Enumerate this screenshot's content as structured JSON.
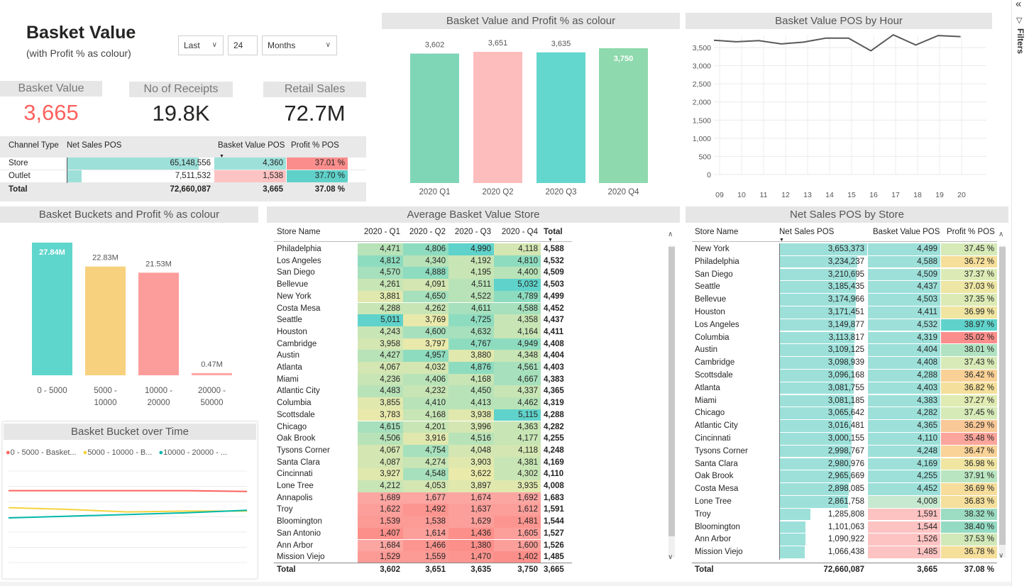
{
  "header": {
    "title": "Basket Value",
    "subtitle": "(with Profit % as colour)"
  },
  "filters": {
    "period": "Last",
    "count": "24",
    "unit": "Months"
  },
  "kpis": [
    {
      "label": "Basket Value",
      "value": "3,665",
      "color": "#fd625e"
    },
    {
      "label": "No of Receipts",
      "value": "19.8K",
      "color": "#252423"
    },
    {
      "label": "Retail Sales",
      "value": "72.7M",
      "color": "#252423"
    }
  ],
  "channel_table": {
    "columns": [
      "Channel Type",
      "Net Sales POS",
      "Basket Value POS",
      "Profit % POS"
    ],
    "rows": [
      {
        "name": "Store",
        "net": "65,148,556",
        "net_frac": 0.897,
        "basket": "4,360",
        "profit": "37.01 %",
        "profit_color": "#fb8e8c",
        "basket_color": "#9de0da"
      },
      {
        "name": "Outlet",
        "net": "7,511,532",
        "net_frac": 0.103,
        "basket": "1,538",
        "profit": "37.70 %",
        "profit_color": "#5fd1c9",
        "basket_color": "#fcc3c2"
      }
    ],
    "total": {
      "name": "Total",
      "net": "72,660,087",
      "basket": "3,665",
      "profit": "37.08 %"
    }
  },
  "quarter_chart": {
    "title": "Basket Value and Profit % as colour",
    "chart_data": {
      "type": "bar",
      "categories": [
        "2020 Q1",
        "2020 Q2",
        "2020 Q3",
        "2020 Q4"
      ],
      "values": [
        3602,
        3651,
        3635,
        3750
      ],
      "labels": [
        "3,602",
        "3,651",
        "3,635",
        "3,750"
      ],
      "colors": [
        "#7fd6b6",
        "#fdbdbd",
        "#63d6cd",
        "#8ed9ad"
      ],
      "ylim": [
        0,
        3750
      ]
    }
  },
  "hour_chart": {
    "title": "Basket Value POS by Hour",
    "chart_data": {
      "type": "line",
      "x": [
        "09",
        "10",
        "11",
        "12",
        "13",
        "14",
        "15",
        "16",
        "17",
        "18",
        "19",
        "20"
      ],
      "values": [
        3700,
        3660,
        3690,
        3600,
        3650,
        3760,
        3760,
        3410,
        3850,
        3570,
        3830,
        3800
      ],
      "yticks": [
        0,
        500,
        1000,
        1500,
        2000,
        2500,
        3000,
        3500
      ],
      "ytick_labels": [
        "0",
        "500",
        "1,000",
        "1,500",
        "2,000",
        "2,500",
        "3,000",
        "3,500"
      ],
      "ylim": [
        0,
        3900
      ],
      "color": "#595959"
    }
  },
  "bucket_chart": {
    "title": "Basket Buckets and Profit % as colour",
    "chart_data": {
      "type": "bar",
      "categories": [
        [
          "0 - 5000",
          ""
        ],
        [
          "5000 -",
          "10000"
        ],
        [
          "10000 -",
          "20000"
        ],
        [
          "20000 -",
          "50000"
        ]
      ],
      "values": [
        27.84,
        22.83,
        21.53,
        0.47
      ],
      "labels": [
        "27.84M",
        "22.83M",
        "21.53M",
        "0.47M"
      ],
      "colors": [
        "#5fd6cc",
        "#f8d17f",
        "#fd9d9b",
        "#fca8a6"
      ],
      "ylim": [
        0,
        27.84
      ]
    }
  },
  "bucket_time": {
    "title": "Basket Bucket over Time",
    "chart_data": {
      "type": "line",
      "legend": [
        {
          "name": "0 - 5000 - Basket...",
          "color": "#fd625e"
        },
        {
          "name": "5000 - 10000 - B...",
          "color": "#f5d33f"
        },
        {
          "name": "10000 - 20000 - ...",
          "color": "#01b8aa"
        }
      ],
      "series": [
        {
          "name": "0 - 5000",
          "values": [
            0.82,
            0.82,
            0.82,
            0.82,
            0.81
          ],
          "color": "#fd625e"
        },
        {
          "name": "5000 - 10000",
          "values": [
            0.62,
            0.6,
            0.57,
            0.58,
            0.58
          ],
          "color": "#f5d33f"
        },
        {
          "name": "10000 - 20000",
          "values": [
            0.5,
            0.52,
            0.54,
            0.56,
            0.59
          ],
          "color": "#01b8aa"
        }
      ],
      "ylim": [
        0,
        1
      ]
    }
  },
  "store_matrix": {
    "title": "Average Basket Value Store",
    "columns": [
      "Store Name",
      "2020 - Q1",
      "2020 - Q2",
      "2020 - Q3",
      "2020 - Q4",
      "Total"
    ],
    "rows": [
      [
        "Philadelphia",
        "4,471",
        "4,806",
        "4,990",
        "4,118",
        "4,588"
      ],
      [
        "Los Angeles",
        "4,812",
        "4,340",
        "4,192",
        "4,810",
        "4,532"
      ],
      [
        "San Diego",
        "4,570",
        "4,888",
        "4,195",
        "4,400",
        "4,509"
      ],
      [
        "Bellevue",
        "4,261",
        "4,091",
        "4,511",
        "5,032",
        "4,503"
      ],
      [
        "New York",
        "3,881",
        "4,650",
        "4,522",
        "4,789",
        "4,499"
      ],
      [
        "Costa Mesa",
        "4,288",
        "4,262",
        "4,611",
        "4,588",
        "4,452"
      ],
      [
        "Seattle",
        "5,011",
        "3,769",
        "4,725",
        "4,358",
        "4,437"
      ],
      [
        "Houston",
        "4,243",
        "4,600",
        "4,632",
        "4,164",
        "4,411"
      ],
      [
        "Cambridge",
        "3,958",
        "3,797",
        "4,767",
        "4,949",
        "4,408"
      ],
      [
        "Austin",
        "4,427",
        "4,957",
        "3,880",
        "4,348",
        "4,404"
      ],
      [
        "Atlanta",
        "4,067",
        "4,032",
        "4,876",
        "4,561",
        "4,403"
      ],
      [
        "Miami",
        "4,236",
        "4,406",
        "4,168",
        "4,667",
        "4,383"
      ],
      [
        "Atlantic City",
        "4,483",
        "4,232",
        "4,450",
        "4,337",
        "4,365"
      ],
      [
        "Columbia",
        "3,855",
        "4,410",
        "4,413",
        "4,462",
        "4,319"
      ],
      [
        "Scottsdale",
        "3,783",
        "4,168",
        "3,938",
        "5,115",
        "4,288"
      ],
      [
        "Chicago",
        "4,615",
        "4,201",
        "3,996",
        "4,363",
        "4,282"
      ],
      [
        "Oak Brook",
        "4,506",
        "3,916",
        "4,516",
        "4,177",
        "4,255"
      ],
      [
        "Tysons Corner",
        "4,067",
        "4,754",
        "4,048",
        "4,118",
        "4,248"
      ],
      [
        "Santa Clara",
        "4,087",
        "4,274",
        "3,903",
        "4,381",
        "4,169"
      ],
      [
        "Cincinnati",
        "3,927",
        "4,548",
        "3,622",
        "4,302",
        "4,110"
      ],
      [
        "Lone Tree",
        "4,212",
        "4,053",
        "3,897",
        "3,935",
        "4,008"
      ],
      [
        "Annapolis",
        "1,689",
        "1,677",
        "1,674",
        "1,692",
        "1,683"
      ],
      [
        "Troy",
        "1,622",
        "1,492",
        "1,637",
        "1,612",
        "1,591"
      ],
      [
        "Bloomington",
        "1,539",
        "1,538",
        "1,629",
        "1,481",
        "1,544"
      ],
      [
        "San Antonio",
        "1,407",
        "1,614",
        "1,436",
        "1,605",
        "1,527"
      ],
      [
        "Ann Arbor",
        "1,684",
        "1,466",
        "1,380",
        "1,600",
        "1,526"
      ],
      [
        "Mission Viejo",
        "1,529",
        "1,559",
        "1,470",
        "1,402",
        "1,485"
      ]
    ],
    "total": [
      "Total",
      "3,602",
      "3,651",
      "3,635",
      "3,750",
      "3,665"
    ],
    "cell_colors": [
      [
        "#b8e3b8",
        "#8edcc0",
        "#5fd3cb",
        "#d4e6b2"
      ],
      [
        "#8edcc0",
        "#b8e3b8",
        "#c8e5b5",
        "#8edcc0"
      ],
      [
        "#a6e0bc",
        "#8edcc0",
        "#c8e5b5",
        "#b8e3b8"
      ],
      [
        "#c8e5b5",
        "#d4e6b2",
        "#b8e3b8",
        "#5fd3cb"
      ],
      [
        "#e0e8ae",
        "#a6e0bc",
        "#b8e3b8",
        "#8edcc0"
      ],
      [
        "#c8e5b5",
        "#c8e5b5",
        "#a6e0bc",
        "#a6e0bc"
      ],
      [
        "#5fd3cb",
        "#e8e9ab",
        "#8edcc0",
        "#c8e5b5"
      ],
      [
        "#c8e5b5",
        "#a6e0bc",
        "#a6e0bc",
        "#c8e5b5"
      ],
      [
        "#d4e6b2",
        "#e8e9ab",
        "#8edcc0",
        "#8edcc0"
      ],
      [
        "#b8e3b8",
        "#8edcc0",
        "#e0e8ae",
        "#c8e5b5"
      ],
      [
        "#d4e6b2",
        "#d4e6b2",
        "#8edcc0",
        "#a6e0bc"
      ],
      [
        "#c8e5b5",
        "#b8e3b8",
        "#c8e5b5",
        "#a6e0bc"
      ],
      [
        "#b8e3b8",
        "#c8e5b5",
        "#b8e3b8",
        "#c8e5b5"
      ],
      [
        "#e0e8ae",
        "#b8e3b8",
        "#b8e3b8",
        "#b8e3b8"
      ],
      [
        "#e8e9ab",
        "#c8e5b5",
        "#e0e8ae",
        "#5fd3cb"
      ],
      [
        "#a6e0bc",
        "#c8e5b5",
        "#d4e6b2",
        "#c8e5b5"
      ],
      [
        "#b8e3b8",
        "#e0e8ae",
        "#b8e3b8",
        "#c8e5b5"
      ],
      [
        "#d4e6b2",
        "#a6e0bc",
        "#d4e6b2",
        "#d4e6b2"
      ],
      [
        "#d4e6b2",
        "#c8e5b5",
        "#e0e8ae",
        "#c8e5b5"
      ],
      [
        "#e0e8ae",
        "#a6e0bc",
        "#eaeaaa",
        "#c8e5b5"
      ],
      [
        "#c8e5b5",
        "#d4e6b2",
        "#e0e8ae",
        "#e0e8ae"
      ],
      [
        "#fca6a2",
        "#fca6a2",
        "#fca6a2",
        "#fca6a2"
      ],
      [
        "#fc9f9b",
        "#fc9590",
        "#fc9f9b",
        "#fc9f9b"
      ],
      [
        "#fc9a96",
        "#fc9a96",
        "#fc9f9b",
        "#fc9590"
      ],
      [
        "#fc8f8a",
        "#fc9f9b",
        "#fc8f8a",
        "#fc9f9b"
      ],
      [
        "#fca6a2",
        "#fc9590",
        "#fc8f8a",
        "#fc9f9b"
      ],
      [
        "#fc9a96",
        "#fc9a96",
        "#fc9590",
        "#fc8f8a"
      ]
    ]
  },
  "net_sales_table": {
    "title": "Net Sales POS by Store",
    "columns": [
      "Store Name",
      "Net Sales POS",
      "Basket Value POS",
      "Profit % POS"
    ],
    "rows": [
      {
        "name": "New York",
        "net": "3,653,373",
        "frac": 1.0,
        "basket": "4,499",
        "bcol": "#9de0da",
        "profit": "37.45 %",
        "pcol": "#d6eab8"
      },
      {
        "name": "Philadelphia",
        "net": "3,234,237",
        "frac": 0.885,
        "basket": "4,588",
        "bcol": "#9de0da",
        "profit": "36.72 %",
        "pcol": "#f6df9a"
      },
      {
        "name": "San Diego",
        "net": "3,210,695",
        "frac": 0.879,
        "basket": "4,509",
        "bcol": "#9de0da",
        "profit": "37.37 %",
        "pcol": "#dcebb6"
      },
      {
        "name": "Seattle",
        "net": "3,185,435",
        "frac": 0.872,
        "basket": "4,437",
        "bcol": "#9de0da",
        "profit": "37.03 %",
        "pcol": "#ede6a4"
      },
      {
        "name": "Bellevue",
        "net": "3,174,966",
        "frac": 0.869,
        "basket": "4,503",
        "bcol": "#9de0da",
        "profit": "37.35 %",
        "pcol": "#dcebb6"
      },
      {
        "name": "Houston",
        "net": "3,171,451",
        "frac": 0.868,
        "basket": "4,411",
        "bcol": "#9de0da",
        "profit": "36.99 %",
        "pcol": "#f0e5a1"
      },
      {
        "name": "Los Angeles",
        "net": "3,149,877",
        "frac": 0.862,
        "basket": "4,532",
        "bcol": "#9de0da",
        "profit": "38.97 %",
        "pcol": "#5fd3cb"
      },
      {
        "name": "Columbia",
        "net": "3,113,817",
        "frac": 0.852,
        "basket": "4,319",
        "bcol": "#9de0da",
        "profit": "35.02 %",
        "pcol": "#fb8e8c"
      },
      {
        "name": "Austin",
        "net": "3,109,125",
        "frac": 0.851,
        "basket": "4,404",
        "bcol": "#9de0da",
        "profit": "38.01 %",
        "pcol": "#b1e3c2"
      },
      {
        "name": "Cambridge",
        "net": "3,098,939",
        "frac": 0.848,
        "basket": "4,408",
        "bcol": "#9de0da",
        "profit": "37.43 %",
        "pcol": "#d8eab7"
      },
      {
        "name": "Scottsdale",
        "net": "3,096,168",
        "frac": 0.847,
        "basket": "4,288",
        "bcol": "#9de0da",
        "profit": "36.42 %",
        "pcol": "#f9d196"
      },
      {
        "name": "Atlanta",
        "net": "3,081,755",
        "frac": 0.843,
        "basket": "4,403",
        "bcol": "#9de0da",
        "profit": "36.82 %",
        "pcol": "#f4e09c"
      },
      {
        "name": "Miami",
        "net": "3,081,185",
        "frac": 0.843,
        "basket": "4,383",
        "bcol": "#9de0da",
        "profit": "37.27 %",
        "pcol": "#e0ebb3"
      },
      {
        "name": "Chicago",
        "net": "3,065,642",
        "frac": 0.839,
        "basket": "4,282",
        "bcol": "#9de0da",
        "profit": "37.45 %",
        "pcol": "#d6eab8"
      },
      {
        "name": "Atlantic City",
        "net": "3,016,481",
        "frac": 0.826,
        "basket": "4,365",
        "bcol": "#9de0da",
        "profit": "36.29 %",
        "pcol": "#f9c897"
      },
      {
        "name": "Cincinnati",
        "net": "3,000,155",
        "frac": 0.821,
        "basket": "4,110",
        "bcol": "#9de0da",
        "profit": "35.48 %",
        "pcol": "#fca59c"
      },
      {
        "name": "Tysons Corner",
        "net": "2,998,767",
        "frac": 0.821,
        "basket": "4,248",
        "bcol": "#9de0da",
        "profit": "36.47 %",
        "pcol": "#f9d398"
      },
      {
        "name": "Santa Clara",
        "net": "2,980,976",
        "frac": 0.816,
        "basket": "4,169",
        "bcol": "#9de0da",
        "profit": "36.98 %",
        "pcol": "#f0e5a1"
      },
      {
        "name": "Oak Brook",
        "net": "2,965,669",
        "frac": 0.812,
        "basket": "4,255",
        "bcol": "#9de0da",
        "profit": "37.91 %",
        "pcol": "#b9e5c0"
      },
      {
        "name": "Costa Mesa",
        "net": "2,898,085",
        "frac": 0.793,
        "basket": "4,452",
        "bcol": "#9de0da",
        "profit": "36.69 %",
        "pcol": "#f6dd9b"
      },
      {
        "name": "Lone Tree",
        "net": "2,861,758",
        "frac": 0.783,
        "basket": "4,008",
        "bcol": "#c6e9d0",
        "profit": "36.83 %",
        "pcol": "#f4e09c"
      },
      {
        "name": "Troy",
        "net": "1,285,808",
        "frac": 0.352,
        "basket": "1,591",
        "bcol": "#fcc3c2",
        "profit": "38.32 %",
        "pcol": "#9bdcc2"
      },
      {
        "name": "Bloomington",
        "net": "1,101,063",
        "frac": 0.301,
        "basket": "1,544",
        "bcol": "#fcc3c2",
        "profit": "38.40 %",
        "pcol": "#95dbc3"
      },
      {
        "name": "Ann Arbor",
        "net": "1,090,922",
        "frac": 0.299,
        "basket": "1,526",
        "bcol": "#fcc3c2",
        "profit": "37.53 %",
        "pcol": "#d1e9b9"
      },
      {
        "name": "Mission Viejo",
        "net": "1,066,438",
        "frac": 0.292,
        "basket": "1,485",
        "bcol": "#fcc3c2",
        "profit": "36.78 %",
        "pcol": "#f5df9b"
      }
    ],
    "total": {
      "name": "Total",
      "net": "72,660,087",
      "basket": "3,665",
      "profit": "37.08 %"
    }
  },
  "sidebar": {
    "collapse_icon": "«",
    "filter_icon": "▽",
    "label": "Filters"
  }
}
